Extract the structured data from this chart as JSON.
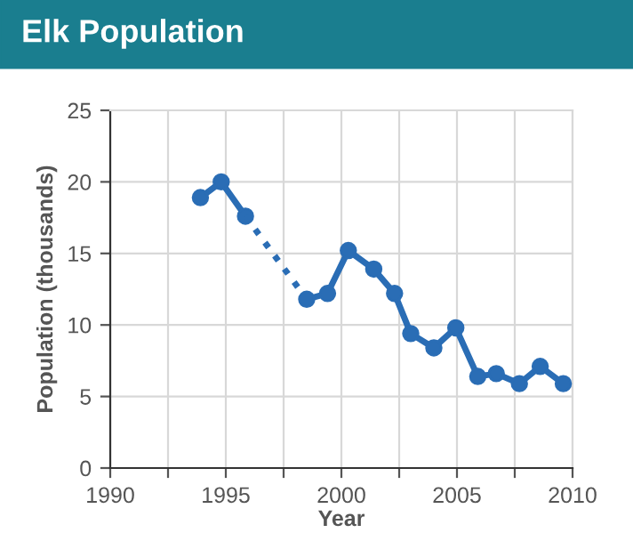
{
  "chart_data": {
    "type": "line",
    "title": "Elk Population",
    "xlabel": "Year",
    "ylabel": "Population (thousands)",
    "series": [
      {
        "color": "#2a6db5",
        "x": [
          1993.9,
          1994.8,
          1995.85
        ],
        "values": [
          18.9,
          20.0,
          17.6
        ],
        "line_style": "solid",
        "marker": "circle"
      },
      {
        "color": "#2a6db5",
        "x": [
          1995.85,
          1998.5
        ],
        "values": [
          17.6,
          11.8
        ],
        "line_style": "dotted"
      },
      {
        "color": "#2a6db5",
        "x": [
          1998.5,
          1999.4,
          2000.3,
          2001.4,
          2002.3,
          2003.0,
          2004.0,
          2004.95,
          2005.9,
          2006.7,
          2007.7,
          2008.6,
          2009.6
        ],
        "values": [
          11.8,
          12.2,
          15.2,
          13.9,
          12.2,
          9.4,
          8.4,
          9.8,
          6.4,
          6.6,
          5.9,
          7.1,
          5.9
        ],
        "line_style": "solid",
        "marker": "circle"
      }
    ],
    "xlim": [
      1990,
      2010
    ],
    "xticks": [
      1990,
      {
        "value": 1992.5,
        "label": null
      },
      1995,
      {
        "value": 1997.5,
        "label": null
      },
      2000,
      {
        "value": 2002.5,
        "label": null
      },
      2005,
      {
        "value": 2007.5,
        "label": null
      },
      2010
    ],
    "ylim": [
      0,
      25
    ],
    "yticks": [
      0,
      5,
      10,
      15,
      20,
      25
    ],
    "grid": true,
    "legend": false
  }
}
